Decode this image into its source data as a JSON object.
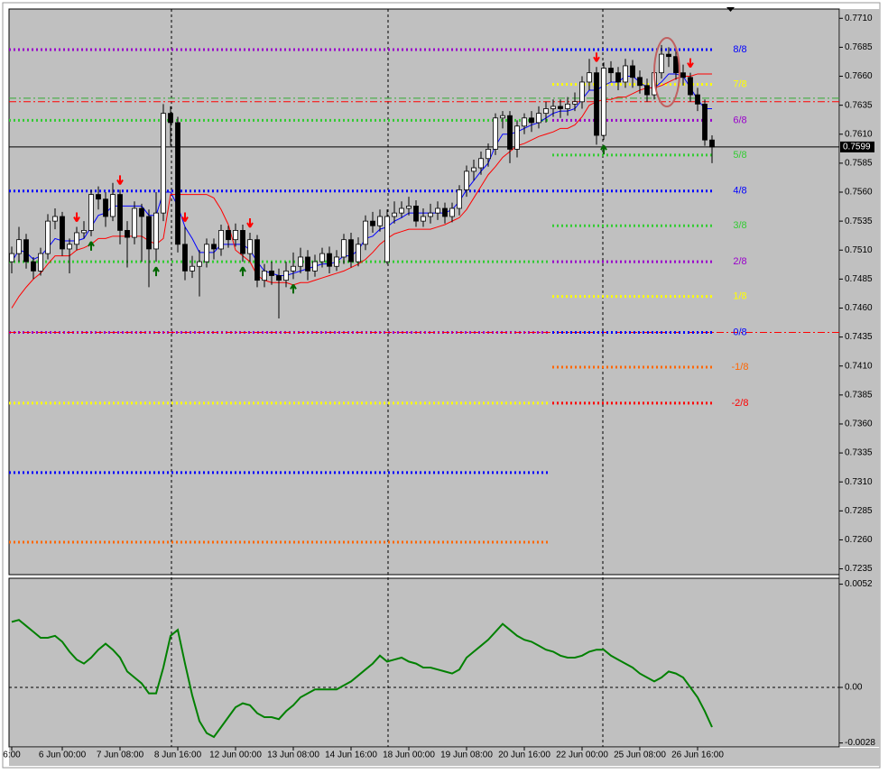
{
  "chart_data": {
    "type": "candlestick",
    "categories": [
      "6:00",
      null,
      null,
      null,
      null,
      null,
      null,
      "6 Jun 00:00",
      null,
      null,
      null,
      null,
      null,
      null,
      null,
      "7 Jun 08:00",
      null,
      null,
      null,
      null,
      null,
      null,
      null,
      "8 Jun 16:00",
      null,
      null,
      null,
      null,
      null,
      null,
      null,
      "12 Jun 00:00",
      null,
      null,
      null,
      null,
      null,
      null,
      null,
      "13 Jun 08:00",
      null,
      null,
      null,
      null,
      null,
      null,
      null,
      "14 Jun 16:00",
      null,
      null,
      null,
      null,
      null,
      null,
      null,
      "18 Jun 00:00",
      null,
      null,
      null,
      null,
      null,
      null,
      null,
      "19 Jun 08:00",
      null,
      null,
      null,
      null,
      null,
      null,
      null,
      "20 Jun 16:00",
      null,
      null,
      null,
      null,
      null,
      null,
      null,
      "22 Jun 00:00",
      null,
      null,
      null,
      null,
      null,
      null,
      null,
      "25 Jun 08:00",
      null,
      null,
      null,
      null,
      null,
      null,
      null,
      "26 Jun 16:00",
      null,
      null
    ],
    "open": [
      0.75,
      0.7507,
      0.7519,
      0.75,
      0.7492,
      0.7507,
      0.7535,
      0.7539,
      0.7511,
      0.7515,
      0.7525,
      0.7527,
      0.7558,
      0.7554,
      0.7539,
      0.7558,
      0.7527,
      0.7521,
      0.7546,
      0.7539,
      0.7511,
      0.7542,
      0.7628,
      0.762,
      0.7515,
      0.7492,
      0.7496,
      0.75,
      0.7515,
      0.7511,
      0.7527,
      0.7519,
      0.7527,
      0.7507,
      0.7519,
      0.7484,
      0.7492,
      0.7488,
      0.7484,
      0.7492,
      0.7496,
      0.7504,
      0.7492,
      0.75,
      0.7507,
      0.7496,
      0.7504,
      0.7519,
      0.75,
      0.7515,
      0.7535,
      0.7531,
      0.75,
      0.7539,
      0.7542,
      0.7546,
      0.7548,
      0.7535,
      0.7539,
      0.7542,
      0.7546,
      0.7539,
      0.7546,
      0.7562,
      0.7578,
      0.7581,
      0.7589,
      0.7597,
      0.7624,
      0.7626,
      0.7597,
      0.7617,
      0.7624,
      0.762,
      0.7628,
      0.7632,
      0.7634,
      0.7632,
      0.7636,
      0.7638,
      0.7655,
      0.7663,
      0.7609,
      0.7667,
      0.7663,
      0.7655,
      0.7669,
      0.7659,
      0.7652,
      0.7644,
      0.7663,
      0.7679,
      0.7677,
      0.7663,
      0.7659,
      0.7644,
      0.7636,
      0.7605
    ],
    "high": [
      0.7513,
      0.753,
      0.7524,
      0.7504,
      0.7512,
      0.7541,
      0.7546,
      0.7543,
      0.752,
      0.753,
      0.7535,
      0.7562,
      0.7565,
      0.756,
      0.7568,
      0.7562,
      0.7535,
      0.7552,
      0.755,
      0.7545,
      0.756,
      0.7636,
      0.7634,
      0.7625,
      0.753,
      0.7505,
      0.751,
      0.752,
      0.752,
      0.7532,
      0.7531,
      0.7533,
      0.7532,
      0.7525,
      0.7523,
      0.7498,
      0.75,
      0.7494,
      0.75,
      0.7508,
      0.7512,
      0.751,
      0.7506,
      0.7512,
      0.7513,
      0.751,
      0.7524,
      0.7525,
      0.7521,
      0.754,
      0.7543,
      0.7545,
      0.7545,
      0.7552,
      0.7552,
      0.7556,
      0.7553,
      0.7546,
      0.755,
      0.7552,
      0.7551,
      0.7551,
      0.7566,
      0.7583,
      0.7588,
      0.7595,
      0.7602,
      0.7628,
      0.763,
      0.763,
      0.7622,
      0.7628,
      0.763,
      0.7634,
      0.7638,
      0.764,
      0.764,
      0.7642,
      0.7646,
      0.766,
      0.7675,
      0.7668,
      0.7672,
      0.7673,
      0.7668,
      0.7675,
      0.7674,
      0.7665,
      0.7658,
      0.7668,
      0.7687,
      0.7685,
      0.7682,
      0.767,
      0.7663,
      0.765,
      0.764,
      0.7609
    ],
    "low": [
      0.749,
      0.75,
      0.7494,
      0.7485,
      0.7488,
      0.7502,
      0.7528,
      0.7505,
      0.749,
      0.751,
      0.752,
      0.7522,
      0.7545,
      0.753,
      0.7535,
      0.7515,
      0.7495,
      0.7515,
      0.75,
      0.7478,
      0.75,
      0.7535,
      0.76,
      0.7508,
      0.7484,
      0.7486,
      0.747,
      0.7495,
      0.7502,
      0.7505,
      0.7512,
      0.7513,
      0.75,
      0.75,
      0.7478,
      0.7478,
      0.748,
      0.7451,
      0.7478,
      0.7485,
      0.749,
      0.7484,
      0.7487,
      0.7495,
      0.749,
      0.7492,
      0.7498,
      0.7495,
      0.7496,
      0.751,
      0.7525,
      0.7526,
      0.7498,
      0.7533,
      0.7538,
      0.754,
      0.753,
      0.753,
      0.7533,
      0.7536,
      0.7533,
      0.7534,
      0.754,
      0.7556,
      0.757,
      0.7575,
      0.7582,
      0.7592,
      0.7615,
      0.7585,
      0.759,
      0.761,
      0.7612,
      0.7615,
      0.762,
      0.7625,
      0.7624,
      0.7626,
      0.763,
      0.7632,
      0.7648,
      0.7601,
      0.7605,
      0.7655,
      0.7648,
      0.765,
      0.765,
      0.7645,
      0.7638,
      0.764,
      0.7658,
      0.7668,
      0.7657,
      0.7652,
      0.7638,
      0.763,
      0.76,
      0.7585
    ],
    "close": [
      0.7507,
      0.7519,
      0.75,
      0.7492,
      0.7507,
      0.7535,
      0.7539,
      0.7511,
      0.7515,
      0.7525,
      0.7527,
      0.7558,
      0.7554,
      0.7539,
      0.7558,
      0.7527,
      0.7521,
      0.7546,
      0.7539,
      0.7511,
      0.7542,
      0.7628,
      0.762,
      0.7515,
      0.7492,
      0.7496,
      0.75,
      0.7515,
      0.7511,
      0.7527,
      0.7519,
      0.7527,
      0.7507,
      0.7519,
      0.7484,
      0.7492,
      0.7488,
      0.7484,
      0.7492,
      0.7496,
      0.7504,
      0.7492,
      0.75,
      0.7507,
      0.7496,
      0.7504,
      0.7519,
      0.75,
      0.7515,
      0.7535,
      0.7531,
      0.7539,
      0.7539,
      0.7542,
      0.7546,
      0.7548,
      0.7535,
      0.7539,
      0.7542,
      0.7546,
      0.7539,
      0.7546,
      0.7562,
      0.7578,
      0.7581,
      0.7589,
      0.7597,
      0.7624,
      0.7626,
      0.7597,
      0.7617,
      0.7624,
      0.762,
      0.7628,
      0.7632,
      0.7634,
      0.7632,
      0.7636,
      0.7638,
      0.7655,
      0.7663,
      0.7609,
      0.7667,
      0.7663,
      0.7655,
      0.7669,
      0.7659,
      0.7652,
      0.7644,
      0.7663,
      0.7679,
      0.7677,
      0.7663,
      0.7659,
      0.7644,
      0.7636,
      0.7605,
      0.7599
    ],
    "bull_color": "#ffffff",
    "bear_color": "#000000",
    "ylim": [
      0.723,
      0.7718
    ],
    "yticks": [
      {
        "value": 0.771,
        "label": "0.7710"
      },
      0.7685,
      {
        "value": 0.766,
        "label": "0.7660"
      },
      0.7635,
      {
        "value": 0.761,
        "label": "0.7610"
      },
      0.7585,
      {
        "value": 0.756,
        "label": "0.7560"
      },
      0.7535,
      {
        "value": 0.751,
        "label": "0.7510"
      },
      0.7485,
      {
        "value": 0.746,
        "label": "0.7460"
      },
      0.7435,
      {
        "value": 0.741,
        "label": "0.7410"
      },
      0.7385,
      {
        "value": 0.736,
        "label": "0.7360"
      },
      0.7335,
      {
        "value": 0.731,
        "label": "0.7310"
      },
      0.7285,
      {
        "value": 0.726,
        "label": "0.7260"
      },
      0.7235
    ],
    "lines": [
      {
        "color": "#0000ff",
        "values": [
          0.75,
          0.751,
          0.7508,
          0.7502,
          0.7505,
          0.7512,
          0.752,
          0.7518,
          0.7518,
          0.7518,
          0.752,
          0.753,
          0.754,
          0.7542,
          0.7548,
          0.7548,
          0.7548,
          0.7548,
          0.7548,
          0.754,
          0.754,
          0.756,
          0.756,
          0.7548,
          0.753,
          0.752,
          0.7508,
          0.7508,
          0.7508,
          0.7515,
          0.7515,
          0.7515,
          0.7515,
          0.751,
          0.75,
          0.7492,
          0.749,
          0.7488,
          0.7488,
          0.749,
          0.7492,
          0.7494,
          0.7496,
          0.7498,
          0.7498,
          0.75,
          0.7505,
          0.7505,
          0.751,
          0.752,
          0.7522,
          0.7528,
          0.753,
          0.7535,
          0.7538,
          0.7542,
          0.7542,
          0.7542,
          0.7542,
          0.7542,
          0.7542,
          0.7545,
          0.7552,
          0.7562,
          0.757,
          0.7578,
          0.7585,
          0.76,
          0.761,
          0.761,
          0.7612,
          0.7615,
          0.7618,
          0.762,
          0.7624,
          0.7628,
          0.763,
          0.763,
          0.7632,
          0.764,
          0.7648,
          0.7648,
          0.7652,
          0.7655,
          0.7655,
          0.766,
          0.766,
          0.7655,
          0.765,
          0.765,
          0.7655,
          0.7662,
          0.7662,
          0.766,
          0.765,
          0.764,
          0.7632,
          0.7632
        ]
      },
      {
        "color": "#ff0000",
        "values": [
          0.746,
          0.747,
          0.7478,
          0.7485,
          0.749,
          0.7498,
          0.7505,
          0.7505,
          0.7505,
          0.751,
          0.7512,
          0.7515,
          0.752,
          0.752,
          0.7522,
          0.7522,
          0.7522,
          0.7522,
          0.7522,
          0.7518,
          0.7515,
          0.752,
          0.7558,
          0.7558,
          0.7558,
          0.7558,
          0.7558,
          0.7558,
          0.7555,
          0.7545,
          0.7532,
          0.751,
          0.7505,
          0.75,
          0.7488,
          0.7484,
          0.7482,
          0.7482,
          0.7482,
          0.748,
          0.7482,
          0.7482,
          0.7484,
          0.7486,
          0.7488,
          0.749,
          0.7492,
          0.7495,
          0.7498,
          0.7502,
          0.7508,
          0.7515,
          0.752,
          0.7524,
          0.7526,
          0.7528,
          0.7528,
          0.7528,
          0.7528,
          0.753,
          0.7532,
          0.7535,
          0.7538,
          0.7545,
          0.7555,
          0.7565,
          0.7575,
          0.7582,
          0.759,
          0.7595,
          0.76,
          0.7602,
          0.7605,
          0.7608,
          0.761,
          0.7612,
          0.7615,
          0.7615,
          0.7618,
          0.7625,
          0.7635,
          0.7638,
          0.764,
          0.764,
          0.7642,
          0.7642,
          0.7645,
          0.7648,
          0.765,
          0.765,
          0.7652,
          0.7655,
          0.7658,
          0.766,
          0.766,
          0.7662,
          0.7662,
          0.7662
        ]
      }
    ],
    "murrey_levels": [
      {
        "label": "8/8",
        "value": 0.7683,
        "color": "#0000ff"
      },
      {
        "label": "7/8",
        "value": 0.7653,
        "color": "#ffff00"
      },
      {
        "label": "6/8",
        "value": 0.7622,
        "color": "#9900cc"
      },
      {
        "label": "5/8",
        "value": 0.7592,
        "color": "#33cc33"
      },
      {
        "label": "4/8",
        "value": 0.7561,
        "color": "#0000ff"
      },
      {
        "label": "3/8",
        "value": 0.7531,
        "color": "#33cc33"
      },
      {
        "label": "2/8",
        "value": 0.75,
        "color": "#9900cc"
      },
      {
        "label": "1/8",
        "value": 0.747,
        "color": "#ffff00"
      },
      {
        "label": "0/8",
        "value": 0.7439,
        "color": "#0000ff"
      },
      {
        "label": "-1/8",
        "value": 0.7409,
        "color": "#ff6600"
      },
      {
        "label": "-2/8",
        "value": 0.7378,
        "color": "#ff0000"
      }
    ],
    "previous_levels": [
      {
        "value": 0.7683,
        "color": "#9900cc"
      },
      {
        "value": 0.7622,
        "color": "#33cc33"
      },
      {
        "value": 0.7561,
        "color": "#0000ff"
      },
      {
        "value": 0.75,
        "color": "#33cc33"
      },
      {
        "value": 0.7439,
        "color": "#9900cc"
      },
      {
        "value": 0.7378,
        "color": "#ffff00"
      },
      {
        "value": 0.7318,
        "color": "#0000ff"
      },
      {
        "value": 0.7258,
        "color": "#ff6600"
      }
    ],
    "dashed_levels": [
      {
        "value": 0.7641,
        "color": "#33aa33"
      },
      {
        "value": 0.7638,
        "color": "#ff0000"
      },
      {
        "value": 0.7439,
        "color": "#ff0000"
      }
    ],
    "current_price": 0.7599,
    "signals": {
      "down": {
        "color": "#ff0000",
        "indices": [
          9,
          15,
          24,
          33,
          81,
          94
        ]
      },
      "up": {
        "color": "#006600",
        "indices": [
          11,
          20,
          32,
          39,
          82
        ]
      }
    },
    "oscillator": {
      "type": "line",
      "color": "#008000",
      "values": [
        0.0033,
        0.0034,
        0.0031,
        0.0028,
        0.0025,
        0.0025,
        0.0026,
        0.0023,
        0.0018,
        0.0014,
        0.0012,
        0.0015,
        0.0019,
        0.0022,
        0.0019,
        0.0015,
        0.0008,
        0.0005,
        0.0002,
        -0.0003,
        -0.0003,
        0.001,
        0.0026,
        0.0029,
        0.0012,
        -0.0004,
        -0.0017,
        -0.0023,
        -0.0025,
        -0.002,
        -0.0015,
        -0.001,
        -0.0008,
        -0.0009,
        -0.0013,
        -0.0015,
        -0.0015,
        -0.0016,
        -0.0012,
        -0.0009,
        -0.0005,
        -0.0003,
        -0.0001,
        -0.0001,
        -0.0001,
        -0.0001,
        0.0001,
        0.0003,
        0.0006,
        0.0009,
        0.0012,
        0.0016,
        0.0013,
        0.0014,
        0.0015,
        0.0013,
        0.0012,
        0.001,
        0.001,
        0.0009,
        0.0008,
        0.0007,
        0.0009,
        0.0015,
        0.0018,
        0.0021,
        0.0024,
        0.0028,
        0.0032,
        0.0029,
        0.0026,
        0.0024,
        0.0023,
        0.0021,
        0.0019,
        0.0018,
        0.0016,
        0.0015,
        0.0015,
        0.0016,
        0.0018,
        0.0019,
        0.0019,
        0.0016,
        0.0014,
        0.0012,
        0.001,
        0.0007,
        0.0005,
        0.0003,
        0.0005,
        0.0008,
        0.0007,
        0.0005,
        0.0,
        -0.0005,
        -0.0012,
        -0.002
      ],
      "ylim": [
        -0.003,
        0.0055
      ],
      "yticks": [
        0.0052,
        {
          "value": 0,
          "label": "0.00"
        },
        -0.0028
      ]
    }
  }
}
